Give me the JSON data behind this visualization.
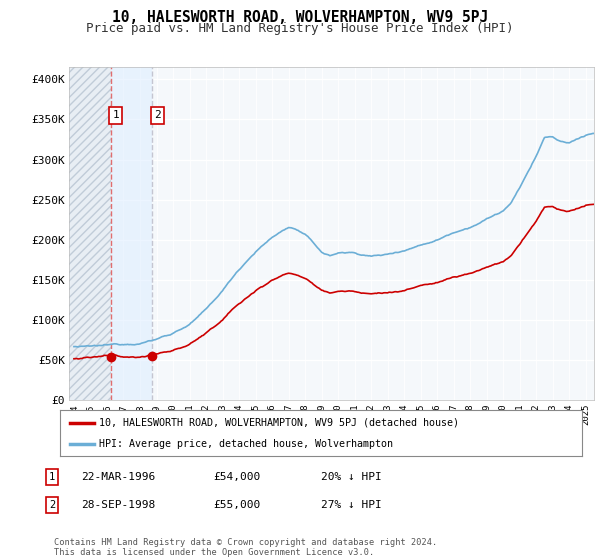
{
  "title": "10, HALESWORTH ROAD, WOLVERHAMPTON, WV9 5PJ",
  "subtitle": "Price paid vs. HM Land Registry's House Price Index (HPI)",
  "title_fontsize": 10.5,
  "subtitle_fontsize": 9,
  "ylabel_ticks": [
    "£0",
    "£50K",
    "£100K",
    "£150K",
    "£200K",
    "£250K",
    "£300K",
    "£350K",
    "£400K"
  ],
  "ytick_values": [
    0,
    50000,
    100000,
    150000,
    200000,
    250000,
    300000,
    350000,
    400000
  ],
  "ylim": [
    0,
    415000
  ],
  "xlim_start": 1993.7,
  "xlim_end": 2025.5,
  "sale1_x": 1996.22,
  "sale1_y": 54000,
  "sale1_label": "1",
  "sale2_x": 1998.75,
  "sale2_y": 55000,
  "sale2_label": "2",
  "hpi_color": "#6baed6",
  "price_color": "#cc0000",
  "dashed_color": "#e08080",
  "background_color": "#ffffff",
  "plot_bg_color": "#f5f8fb",
  "grid_color": "#d0d8e0",
  "legend_label_price": "10, HALESWORTH ROAD, WOLVERHAMPTON, WV9 5PJ (detached house)",
  "legend_label_hpi": "HPI: Average price, detached house, Wolverhampton",
  "footnote": "Contains HM Land Registry data © Crown copyright and database right 2024.\nThis data is licensed under the Open Government Licence v3.0.",
  "table_rows": [
    {
      "num": "1",
      "date": "22-MAR-1996",
      "price": "£54,000",
      "hpi": "20% ↓ HPI"
    },
    {
      "num": "2",
      "date": "28-SEP-1998",
      "price": "£55,000",
      "hpi": "27% ↓ HPI"
    }
  ]
}
